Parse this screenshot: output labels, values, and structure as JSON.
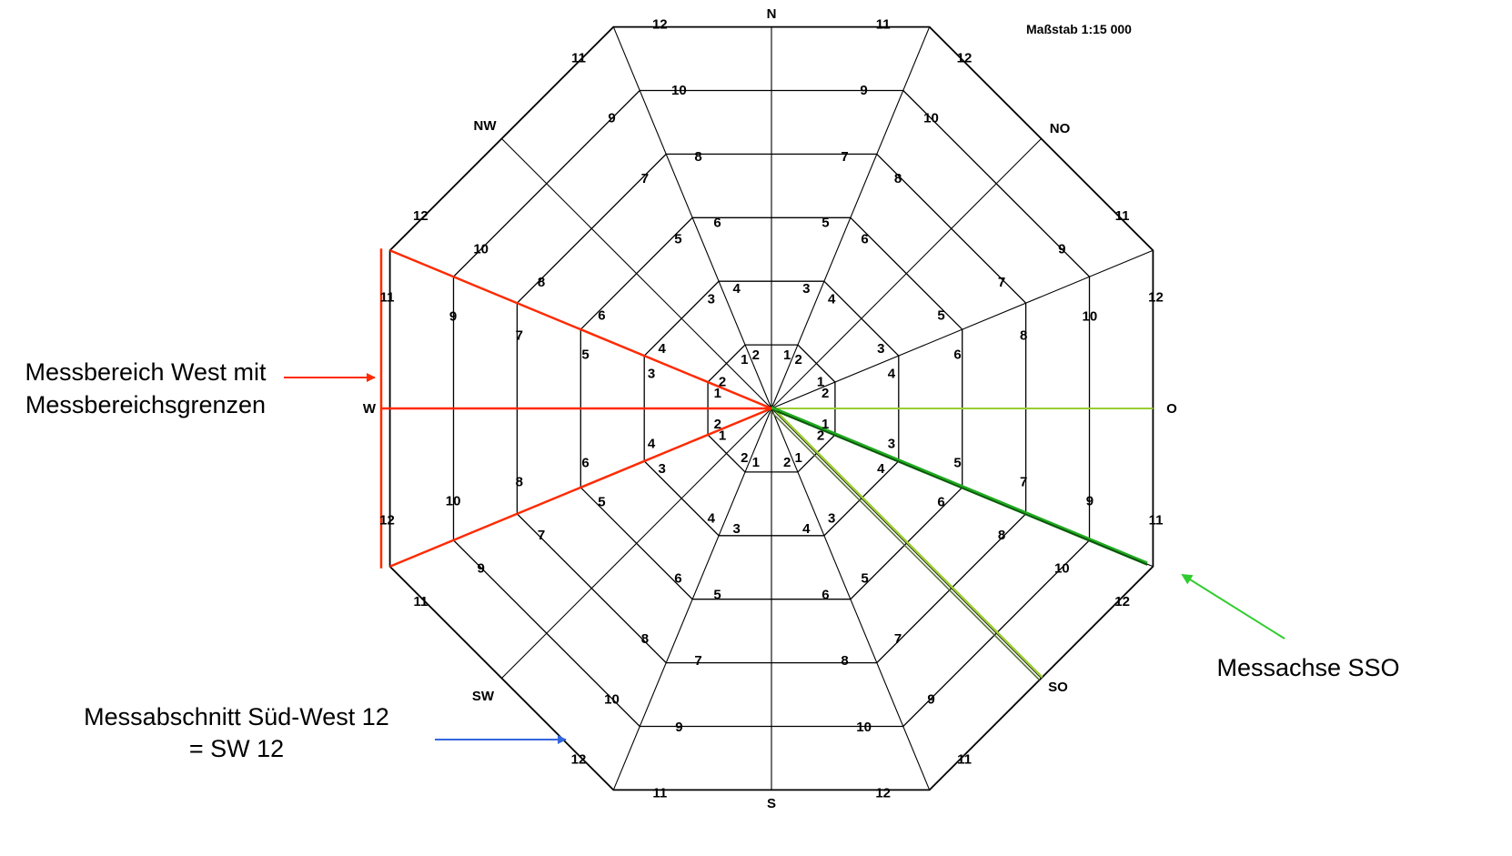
{
  "scale_label": "Maßstab 1:15 000",
  "directions": [
    "N",
    "NO",
    "O",
    "SO",
    "S",
    "SW",
    "W",
    "NW"
  ],
  "ring_count": 12,
  "annotations": {
    "west_line1": "Messbereich West mit",
    "west_line2": "Messbereichsgrenzen",
    "sso": "Messachse SSO",
    "sw12_line1": "Messabschnitt Süd-West 12",
    "sw12_line2": "= SW 12"
  },
  "highlights": {
    "west_range_color": "#ff2a00",
    "sso_axis_color": "#1faa1f",
    "so_axis_color": "#9acd32",
    "o_axis_color": "#9acd32",
    "sw12_arrow_color": "#3366dd"
  }
}
